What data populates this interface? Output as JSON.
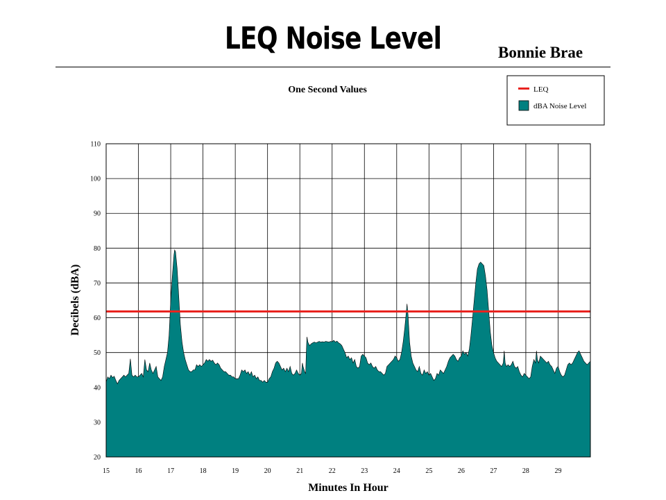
{
  "header": {
    "title": "LEQ Noise Level",
    "site": "Bonnie Brae"
  },
  "chart_data": {
    "type": "area",
    "subtitle": "One Second Values",
    "xlabel": "Minutes In Hour",
    "ylabel": "Decibels (dBA)",
    "xlim": [
      15,
      30
    ],
    "ylim": [
      20,
      110
    ],
    "x_ticks": [
      "15",
      "16",
      "17",
      "18",
      "19",
      "20",
      "21",
      "22",
      "23",
      "24",
      "25",
      "26",
      "27",
      "28",
      "29"
    ],
    "y_ticks": [
      "20",
      "30",
      "40",
      "50",
      "60",
      "70",
      "80",
      "90",
      "100",
      "110"
    ],
    "grid": true,
    "legend": {
      "position": "top-right",
      "entries": [
        {
          "label": "LEQ",
          "color": "#e8231f",
          "kind": "line"
        },
        {
          "label": "dBA Noise Level",
          "color": "#008080",
          "kind": "area"
        }
      ]
    },
    "series": [
      {
        "name": "LEQ",
        "kind": "line",
        "color": "#e8231f",
        "value": 61.8
      },
      {
        "name": "dBA Noise Level",
        "kind": "area",
        "color": "#008080",
        "points": [
          [
            15.0,
            41.5
          ],
          [
            15.05,
            43
          ],
          [
            15.1,
            42.5
          ],
          [
            15.15,
            43.5
          ],
          [
            15.2,
            42.8
          ],
          [
            15.25,
            43.2
          ],
          [
            15.3,
            42
          ],
          [
            15.35,
            41
          ],
          [
            15.4,
            42
          ],
          [
            15.45,
            42.5
          ],
          [
            15.5,
            43
          ],
          [
            15.55,
            43.5
          ],
          [
            15.6,
            43
          ],
          [
            15.65,
            43.5
          ],
          [
            15.7,
            44
          ],
          [
            15.75,
            48.2
          ],
          [
            15.8,
            43.5
          ],
          [
            15.85,
            43
          ],
          [
            15.9,
            43.5
          ],
          [
            15.95,
            43
          ],
          [
            16.0,
            43
          ],
          [
            16.05,
            43.5
          ],
          [
            16.1,
            44
          ],
          [
            16.15,
            43
          ],
          [
            16.2,
            48
          ],
          [
            16.25,
            45
          ],
          [
            16.3,
            44.5
          ],
          [
            16.35,
            47
          ],
          [
            16.4,
            45
          ],
          [
            16.45,
            44
          ],
          [
            16.5,
            45
          ],
          [
            16.55,
            46
          ],
          [
            16.6,
            43
          ],
          [
            16.65,
            42.5
          ],
          [
            16.7,
            42
          ],
          [
            16.75,
            43
          ],
          [
            16.8,
            46
          ],
          [
            16.85,
            48
          ],
          [
            16.9,
            50
          ],
          [
            16.95,
            55
          ],
          [
            17.0,
            65
          ],
          [
            17.05,
            72
          ],
          [
            17.1,
            78
          ],
          [
            17.12,
            79.5
          ],
          [
            17.15,
            79
          ],
          [
            17.2,
            74
          ],
          [
            17.25,
            66
          ],
          [
            17.3,
            58
          ],
          [
            17.35,
            53
          ],
          [
            17.4,
            50
          ],
          [
            17.45,
            48
          ],
          [
            17.5,
            46.5
          ],
          [
            17.55,
            45
          ],
          [
            17.6,
            44.5
          ],
          [
            17.65,
            44.5
          ],
          [
            17.7,
            45
          ],
          [
            17.75,
            45
          ],
          [
            17.8,
            46.5
          ],
          [
            17.85,
            46
          ],
          [
            17.9,
            46.5
          ],
          [
            17.95,
            46
          ],
          [
            18.0,
            46.5
          ],
          [
            18.05,
            47
          ],
          [
            18.1,
            48
          ],
          [
            18.15,
            47.5
          ],
          [
            18.2,
            48
          ],
          [
            18.25,
            47.5
          ],
          [
            18.3,
            47.8
          ],
          [
            18.35,
            47
          ],
          [
            18.4,
            46.5
          ],
          [
            18.45,
            47
          ],
          [
            18.5,
            46.5
          ],
          [
            18.55,
            45.5
          ],
          [
            18.6,
            45
          ],
          [
            18.65,
            44.5
          ],
          [
            18.7,
            44.5
          ],
          [
            18.75,
            44
          ],
          [
            18.8,
            43.5
          ],
          [
            18.85,
            43.5
          ],
          [
            18.9,
            43
          ],
          [
            18.95,
            43
          ],
          [
            19.0,
            42.5
          ],
          [
            19.05,
            42.5
          ],
          [
            19.1,
            42.5
          ],
          [
            19.15,
            43.5
          ],
          [
            19.2,
            45
          ],
          [
            19.25,
            44.5
          ],
          [
            19.3,
            45
          ],
          [
            19.35,
            44
          ],
          [
            19.4,
            44.5
          ],
          [
            19.45,
            43.5
          ],
          [
            19.5,
            44.5
          ],
          [
            19.55,
            43
          ],
          [
            19.6,
            43.5
          ],
          [
            19.65,
            42.5
          ],
          [
            19.7,
            43
          ],
          [
            19.75,
            42
          ],
          [
            19.8,
            42
          ],
          [
            19.85,
            41.5
          ],
          [
            19.9,
            42
          ],
          [
            19.95,
            41.5
          ],
          [
            20.0,
            41.5
          ],
          [
            20.05,
            42.5
          ],
          [
            20.1,
            43
          ],
          [
            20.15,
            44.5
          ],
          [
            20.2,
            45.5
          ],
          [
            20.25,
            47
          ],
          [
            20.3,
            47.5
          ],
          [
            20.35,
            47
          ],
          [
            20.4,
            46
          ],
          [
            20.45,
            45
          ],
          [
            20.5,
            45.5
          ],
          [
            20.55,
            44.5
          ],
          [
            20.6,
            45.5
          ],
          [
            20.65,
            44.5
          ],
          [
            20.7,
            46
          ],
          [
            20.75,
            44
          ],
          [
            20.8,
            43.5
          ],
          [
            20.85,
            44
          ],
          [
            20.9,
            45
          ],
          [
            20.95,
            44
          ],
          [
            21.0,
            43.5
          ],
          [
            21.05,
            44
          ],
          [
            21.08,
            47
          ],
          [
            21.1,
            46
          ],
          [
            21.15,
            44.5
          ],
          [
            21.18,
            44
          ],
          [
            21.2,
            50
          ],
          [
            21.22,
            54.5
          ],
          [
            21.25,
            53
          ],
          [
            21.3,
            52
          ],
          [
            21.35,
            52.5
          ],
          [
            21.4,
            52.8
          ],
          [
            21.45,
            53
          ],
          [
            21.5,
            52.8
          ],
          [
            21.55,
            53
          ],
          [
            21.6,
            53.2
          ],
          [
            21.65,
            53
          ],
          [
            21.7,
            53.1
          ],
          [
            21.75,
            53
          ],
          [
            21.8,
            53.2
          ],
          [
            21.85,
            53.1
          ],
          [
            21.9,
            53
          ],
          [
            21.95,
            53.2
          ],
          [
            22.0,
            53.1
          ],
          [
            22.05,
            53.5
          ],
          [
            22.1,
            53
          ],
          [
            22.15,
            53.3
          ],
          [
            22.2,
            52.8
          ],
          [
            22.25,
            52.5
          ],
          [
            22.3,
            52
          ],
          [
            22.35,
            51
          ],
          [
            22.4,
            50
          ],
          [
            22.45,
            48.5
          ],
          [
            22.5,
            49
          ],
          [
            22.55,
            48
          ],
          [
            22.6,
            48.5
          ],
          [
            22.65,
            47
          ],
          [
            22.7,
            48
          ],
          [
            22.75,
            46
          ],
          [
            22.8,
            45.5
          ],
          [
            22.85,
            46
          ],
          [
            22.9,
            49
          ],
          [
            22.95,
            49.5
          ],
          [
            23.0,
            49
          ],
          [
            23.05,
            48.5
          ],
          [
            23.1,
            47
          ],
          [
            23.15,
            46.5
          ],
          [
            23.2,
            47
          ],
          [
            23.25,
            46
          ],
          [
            23.3,
            45.5
          ],
          [
            23.35,
            46
          ],
          [
            23.4,
            45
          ],
          [
            23.45,
            44.5
          ],
          [
            23.5,
            44.5
          ],
          [
            23.55,
            44
          ],
          [
            23.6,
            43.5
          ],
          [
            23.65,
            44
          ],
          [
            23.7,
            46
          ],
          [
            23.75,
            46.5
          ],
          [
            23.8,
            47
          ],
          [
            23.85,
            47.5
          ],
          [
            23.9,
            48
          ],
          [
            23.95,
            49
          ],
          [
            24.0,
            48.5
          ],
          [
            24.05,
            47.5
          ],
          [
            24.1,
            48
          ],
          [
            24.15,
            50
          ],
          [
            24.2,
            53
          ],
          [
            24.25,
            57
          ],
          [
            24.3,
            62
          ],
          [
            24.32,
            64
          ],
          [
            24.35,
            61
          ],
          [
            24.4,
            53
          ],
          [
            24.45,
            49
          ],
          [
            24.5,
            47
          ],
          [
            24.55,
            46
          ],
          [
            24.6,
            45
          ],
          [
            24.65,
            44.5
          ],
          [
            24.7,
            46
          ],
          [
            24.75,
            44
          ],
          [
            24.8,
            43.5
          ],
          [
            24.85,
            45
          ],
          [
            24.9,
            44
          ],
          [
            24.95,
            44.5
          ],
          [
            25.0,
            43.5
          ],
          [
            25.05,
            44
          ],
          [
            25.1,
            43
          ],
          [
            25.15,
            42
          ],
          [
            25.2,
            42.5
          ],
          [
            25.25,
            44
          ],
          [
            25.3,
            43.5
          ],
          [
            25.35,
            45
          ],
          [
            25.4,
            44.5
          ],
          [
            25.45,
            44
          ],
          [
            25.5,
            45
          ],
          [
            25.55,
            46
          ],
          [
            25.6,
            47.5
          ],
          [
            25.65,
            48.5
          ],
          [
            25.7,
            49
          ],
          [
            25.75,
            49.5
          ],
          [
            25.8,
            49
          ],
          [
            25.85,
            48
          ],
          [
            25.9,
            47.5
          ],
          [
            25.95,
            48.5
          ],
          [
            26.0,
            49
          ],
          [
            26.05,
            50.5
          ],
          [
            26.1,
            49.5
          ],
          [
            26.15,
            50
          ],
          [
            26.2,
            49
          ],
          [
            26.25,
            51
          ],
          [
            26.3,
            55
          ],
          [
            26.35,
            60
          ],
          [
            26.4,
            65
          ],
          [
            26.45,
            70
          ],
          [
            26.5,
            74
          ],
          [
            26.55,
            75.5
          ],
          [
            26.6,
            76
          ],
          [
            26.65,
            75.5
          ],
          [
            26.7,
            75
          ],
          [
            26.75,
            72
          ],
          [
            26.8,
            68
          ],
          [
            26.85,
            62
          ],
          [
            26.9,
            56
          ],
          [
            26.95,
            52
          ],
          [
            27.0,
            50
          ],
          [
            27.05,
            48.5
          ],
          [
            27.1,
            47.5
          ],
          [
            27.15,
            47
          ],
          [
            27.2,
            46.5
          ],
          [
            27.25,
            46
          ],
          [
            27.3,
            47
          ],
          [
            27.33,
            50.5
          ],
          [
            27.36,
            47
          ],
          [
            27.4,
            46
          ],
          [
            27.45,
            46.5
          ],
          [
            27.5,
            46
          ],
          [
            27.55,
            46.5
          ],
          [
            27.6,
            47.5
          ],
          [
            27.65,
            46
          ],
          [
            27.7,
            45.5
          ],
          [
            27.75,
            46
          ],
          [
            27.8,
            44.5
          ],
          [
            27.85,
            43.5
          ],
          [
            27.9,
            43
          ],
          [
            27.95,
            44
          ],
          [
            28.0,
            43.5
          ],
          [
            28.05,
            43
          ],
          [
            28.1,
            42.5
          ],
          [
            28.15,
            43
          ],
          [
            28.2,
            46
          ],
          [
            28.25,
            48
          ],
          [
            28.3,
            47
          ],
          [
            28.33,
            50.5
          ],
          [
            28.36,
            48
          ],
          [
            28.4,
            47
          ],
          [
            28.45,
            49
          ],
          [
            28.5,
            48.5
          ],
          [
            28.55,
            48
          ],
          [
            28.6,
            47.5
          ],
          [
            28.65,
            47
          ],
          [
            28.7,
            47.5
          ],
          [
            28.75,
            46.5
          ],
          [
            28.8,
            46
          ],
          [
            28.85,
            45
          ],
          [
            28.9,
            44
          ],
          [
            28.95,
            45.5
          ],
          [
            29.0,
            46
          ],
          [
            29.05,
            44.5
          ],
          [
            29.1,
            43.5
          ],
          [
            29.15,
            43
          ],
          [
            29.2,
            43.5
          ],
          [
            29.25,
            45
          ],
          [
            29.3,
            46.5
          ],
          [
            29.35,
            47
          ],
          [
            29.4,
            46.5
          ],
          [
            29.45,
            47
          ],
          [
            29.5,
            48
          ],
          [
            29.55,
            49
          ],
          [
            29.6,
            50
          ],
          [
            29.65,
            50.5
          ],
          [
            29.7,
            49.5
          ],
          [
            29.75,
            48.5
          ],
          [
            29.8,
            47.5
          ],
          [
            29.85,
            47
          ],
          [
            29.9,
            46.5
          ],
          [
            29.95,
            47
          ],
          [
            30.0,
            47.5
          ]
        ]
      }
    ]
  }
}
